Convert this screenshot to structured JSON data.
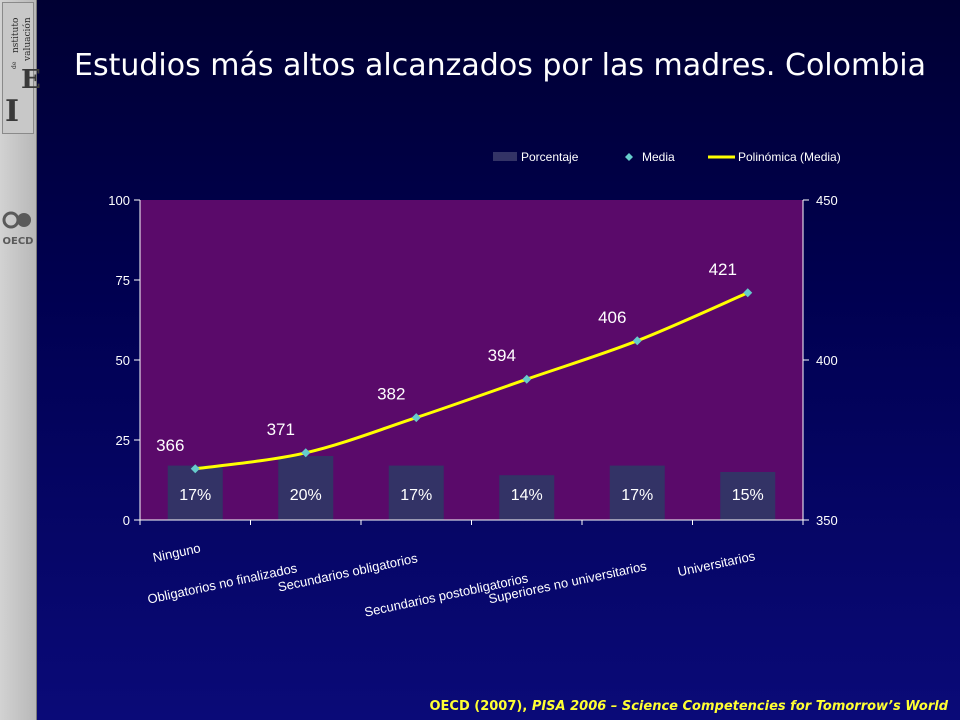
{
  "logos": {
    "instituto": {
      "big_i": "I",
      "small_top": "nstituto",
      "small_de": "de",
      "big_e": "E",
      "small_bottom": "valuación"
    },
    "oecd": "OECD"
  },
  "page": {
    "title": "Estudios más altos alcanzados por las madres. Colombia",
    "footer_source": "OECD (2007), ",
    "footer_work": "PISA 2006 – Science Competencies for Tomorrow’s World"
  },
  "chart_data": {
    "type": "bar",
    "categories": [
      "Ninguno",
      "Obligatorios no finalizados",
      "Secundarios obligatorios",
      "Secundarios postobligatorios",
      "Superiores no universitarios",
      "Universitarios"
    ],
    "series": [
      {
        "name": "Porcentaje",
        "type": "bar",
        "axis": "left",
        "values": [
          17,
          20,
          17,
          14,
          17,
          15
        ],
        "labels": [
          "17%",
          "20%",
          "17%",
          "14%",
          "17%",
          "15%"
        ],
        "color": "#333366"
      },
      {
        "name": "Media",
        "type": "scatter",
        "axis": "right",
        "values": [
          366,
          371,
          382,
          394,
          406,
          421
        ],
        "labels": [
          "366",
          "371",
          "382",
          "394",
          "406",
          "421"
        ],
        "color": "#66cccc"
      },
      {
        "name": "Polinómica (Media)",
        "type": "line",
        "axis": "right",
        "values": [
          366,
          371,
          382,
          394,
          406,
          421
        ],
        "color": "#ffff00"
      }
    ],
    "y_left": {
      "ylim": [
        0,
        100
      ],
      "ticks": [
        "0",
        "25",
        "50",
        "75",
        "100"
      ]
    },
    "y_right": {
      "ylim": [
        350,
        450
      ],
      "ticks": [
        "350",
        "400",
        "450"
      ]
    },
    "legend": {
      "placement": "top-right"
    },
    "grid": false,
    "plot_background": "#5a0a6a"
  }
}
